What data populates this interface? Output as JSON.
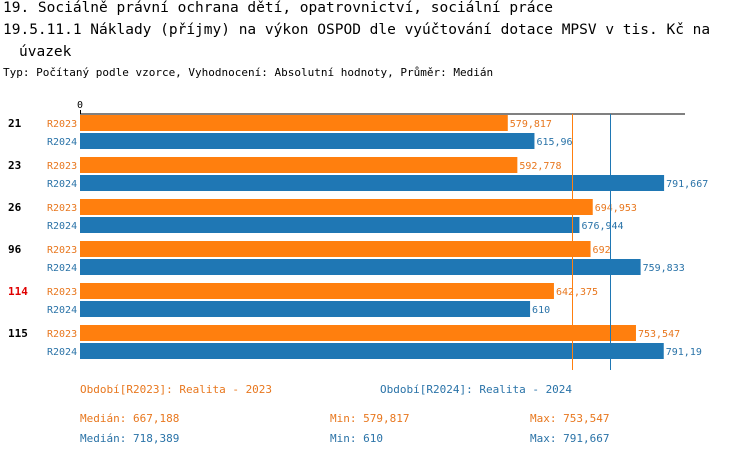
{
  "title_lines": [
    "19. Sociálně právní ochrana dětí, opatrovnictví, sociální práce",
    "19.5.11.1 Náklady (příjmy) na výkon OSPOD dle vyúčtování dotace MPSV v tis. Kč na",
    "úvazek"
  ],
  "subtitle": "Typ: Počítaný podle vzorce, Vyhodnocení: Absolutní hodnoty, Průměr: Medián",
  "colors": {
    "r2023": "#ff7f0e",
    "r2024": "#1f77b4",
    "r2023_text": "#e8771e",
    "r2024_text": "#2a73a8",
    "highlight": "#e00000"
  },
  "chart_data": {
    "type": "bar",
    "orientation": "horizontal",
    "axis_zero_label": "0",
    "xlim": [
      0,
      820
    ],
    "categories": [
      "21",
      "23",
      "26",
      "96",
      "114",
      "115"
    ],
    "highlighted_category": "114",
    "series": [
      {
        "name": "R2023",
        "values": [
          579.817,
          592.778,
          694.953,
          692,
          642.375,
          753.547
        ],
        "labels": [
          "579,817",
          "592,778",
          "694,953",
          "692",
          "642,375",
          "753,547"
        ]
      },
      {
        "name": "R2024",
        "values": [
          615.96,
          791.667,
          676.944,
          759.833,
          610,
          791.19
        ],
        "labels": [
          "615,96",
          "791,667",
          "676,944",
          "759,833",
          "610",
          "791,19"
        ]
      }
    ],
    "reference_lines": [
      {
        "series": "R2023",
        "value": 667.188
      },
      {
        "series": "R2024",
        "value": 718.389
      }
    ]
  },
  "legend": {
    "r2023": "Období[R2023]: Realita - 2023",
    "r2024": "Období[R2024]: Realita - 2024"
  },
  "stats": {
    "r2023": {
      "median": "Medián: 667,188",
      "min": "Min: 579,817",
      "max": "Max: 753,547"
    },
    "r2024": {
      "median": "Medián: 718,389",
      "min": "Min: 610",
      "max": "Max: 791,667"
    }
  }
}
